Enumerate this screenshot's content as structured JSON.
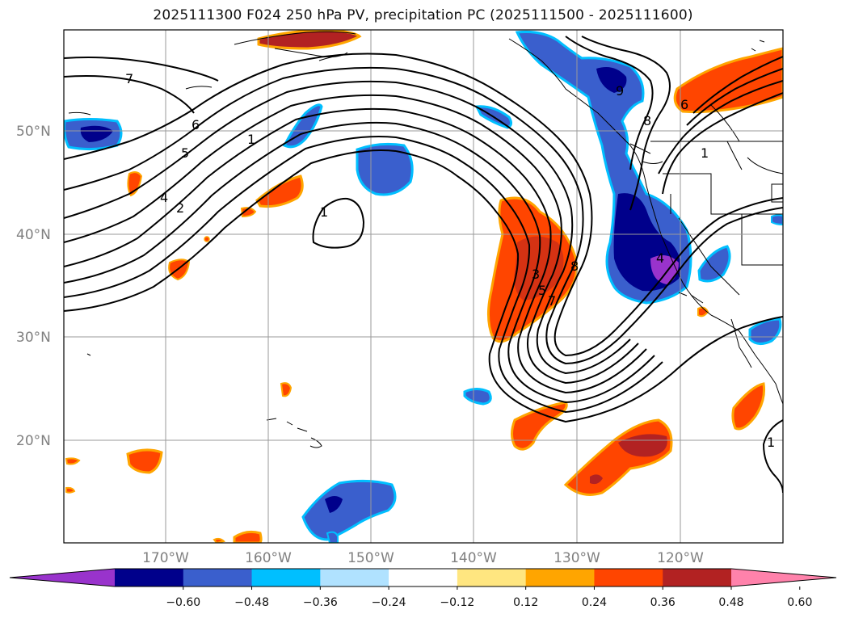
{
  "title": "2025111300 F024 250 hPa PV, precipitation PC (2025111500 - 2025111600)",
  "map": {
    "lat_labels": [
      "50°N",
      "40°N",
      "30°N",
      "20°N"
    ],
    "lon_labels": [
      "170°W",
      "160°W",
      "150°W",
      "140°W",
      "130°W",
      "120°W"
    ],
    "contour_labels": [
      "7",
      "6",
      "5",
      "4",
      "2",
      "1",
      "1",
      "9",
      "8",
      "6",
      "1",
      "3",
      "5",
      "7",
      "8",
      "4",
      "1"
    ]
  },
  "colorbar": {
    "ticks": [
      "−0.60",
      "−0.48",
      "−0.36",
      "−0.24",
      "−0.12",
      "0.12",
      "0.24",
      "0.36",
      "0.48",
      "0.60"
    ],
    "colors": [
      "#9933cc",
      "#00008b",
      "#3a5fcd",
      "#00bfff",
      "#b0e2ff",
      "#ffffff",
      "#ffe680",
      "#ffa500",
      "#ff4500",
      "#b22222",
      "#ff82ab"
    ]
  }
}
